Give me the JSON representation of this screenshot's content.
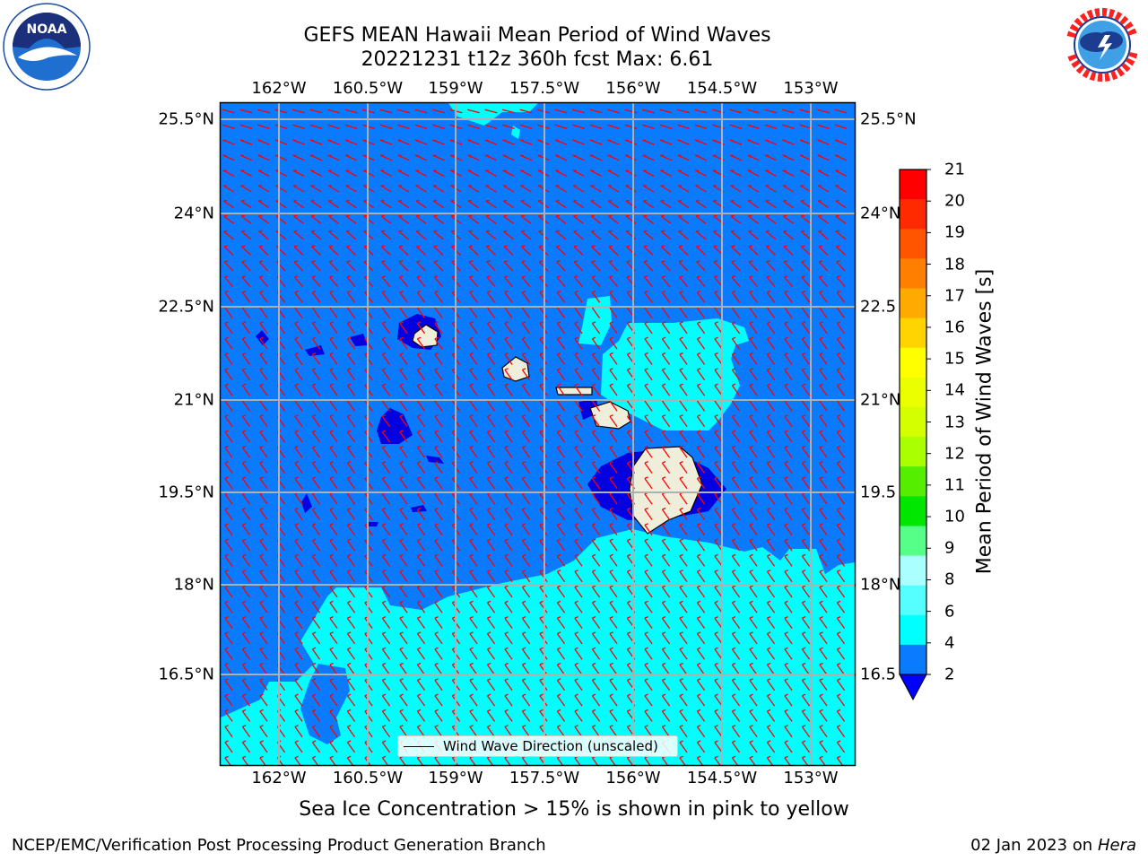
{
  "title": {
    "line1": "GEFS MEAN Hawaii Mean Period of Wind Waves",
    "line2": "20221231 t12z 360h fcst   Max: 6.61"
  },
  "logos": {
    "noaa_text": "NOAA",
    "noaa_ring": "NATIONAL OCEANIC AND ATMOSPHERIC ADMINISTRATION · U.S. DEPARTMENT OF COMMERCE",
    "nws_ring": "NATIONAL WEATHER SERVICE"
  },
  "map": {
    "lon_labels": [
      "162°W",
      "160.5°W",
      "159°W",
      "157.5°W",
      "156°W",
      "154.5°W",
      "153°W"
    ],
    "lat_labels": [
      "25.5°N",
      "24°N",
      "22.5°N",
      "21°N",
      "19.5°N",
      "18°N",
      "16.5°N"
    ],
    "right_lat_labels": [
      "25.5°N",
      "24°N",
      "22.5",
      "21°N",
      "19.5",
      "18°N",
      "16.5"
    ],
    "legend_label": "Wind Wave Direction (unscaled)",
    "colors": {
      "ocean_2_4": "#0a7bff",
      "ocean_below_2": "#0000e0",
      "ocean_4_6": "#00ffff",
      "land": "#efeedb",
      "arrows": "#ff0000",
      "grid": "#b0b0b0"
    }
  },
  "colorbar": {
    "title": "Mean Period of Wind Waves [s]",
    "ticks": [
      "21",
      "20",
      "19",
      "18",
      "17",
      "16",
      "15",
      "14",
      "13",
      "12",
      "11",
      "10",
      "9",
      "8",
      "6",
      "4",
      "2"
    ],
    "colors": [
      "#ff0000",
      "#ff2a00",
      "#ff5500",
      "#ff7f00",
      "#ffaa00",
      "#ffd400",
      "#ffff00",
      "#eaff00",
      "#d4ff00",
      "#aaff00",
      "#55ee00",
      "#00e600",
      "#55ff88",
      "#aaffff",
      "#55ffff",
      "#00ffff",
      "#0a7bff"
    ],
    "extend_color": "#0000ff"
  },
  "note": "Sea Ice Concentration > 15% is shown in pink to yellow",
  "footer": {
    "left": "NCEP/EMC/Verification Post Processing Product Generation Branch",
    "right_date": "02 Jan 2023 on",
    "right_host": "Hera"
  }
}
